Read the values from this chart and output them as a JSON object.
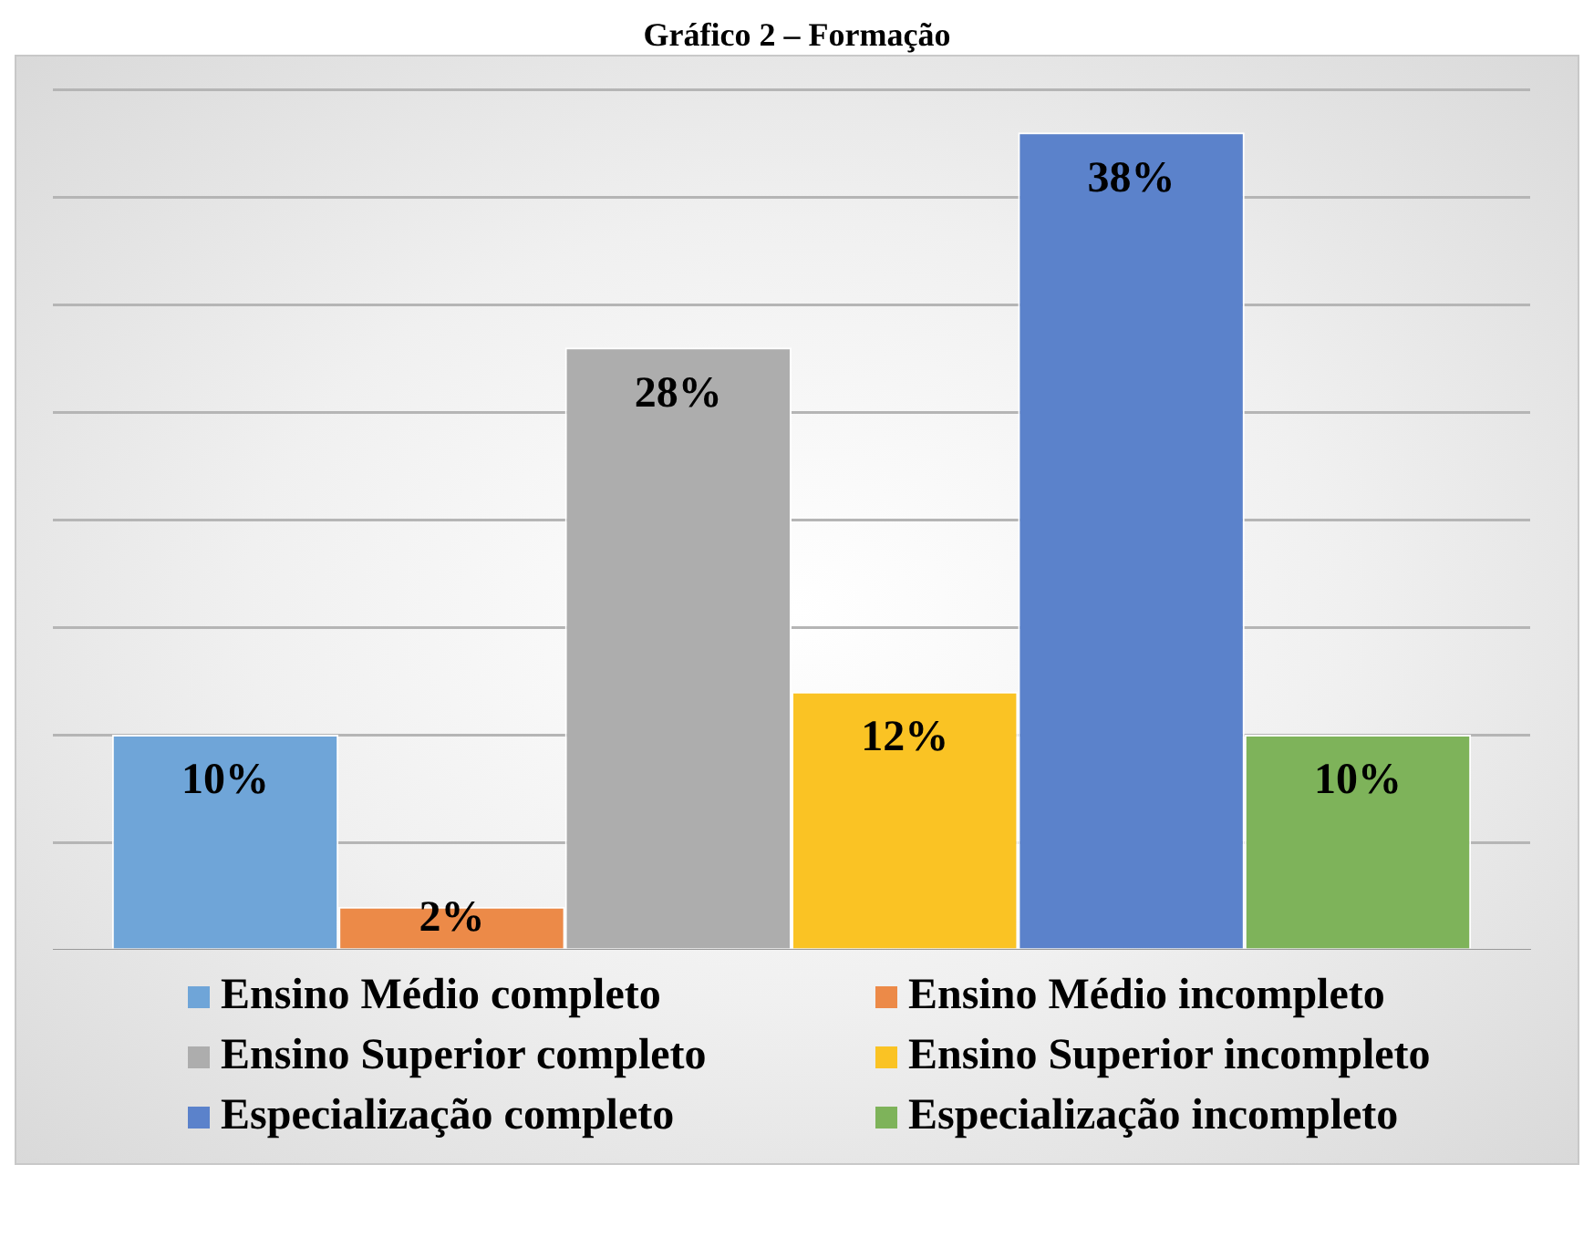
{
  "chart_data": {
    "type": "bar",
    "title": "Gráfico 2 – Formação",
    "categories": [
      null
    ],
    "series": [
      {
        "name": "Ensino Médio completo",
        "color": "#6fa5d8",
        "values": [
          10
        ],
        "value_labels": [
          "10%"
        ]
      },
      {
        "name": "Ensino Médio incompleto",
        "color": "#ec8a48",
        "values": [
          2
        ],
        "value_labels": [
          "2%"
        ]
      },
      {
        "name": "Ensino Superior completo",
        "color": "#adadad",
        "values": [
          28
        ],
        "value_labels": [
          "28%"
        ]
      },
      {
        "name": "Ensino Superior incompleto",
        "color": "#fac324",
        "values": [
          12
        ],
        "value_labels": [
          "12%"
        ]
      },
      {
        "name": "Especialização completo",
        "color": "#5b82cb",
        "values": [
          38
        ],
        "value_labels": [
          "38%"
        ]
      },
      {
        "name": "Especialização incompleto",
        "color": "#7eb35a",
        "values": [
          10
        ],
        "value_labels": [
          "10%"
        ]
      }
    ],
    "grid": "y",
    "tick_labels": false,
    "legend": "bottom"
  }
}
